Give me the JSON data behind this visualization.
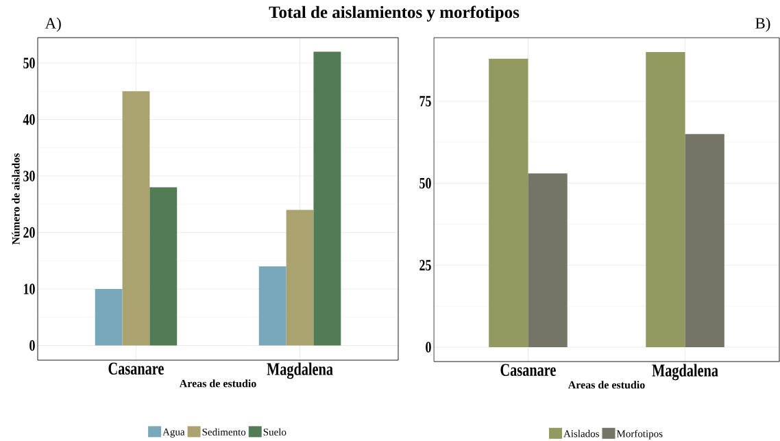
{
  "chart_data": [
    {
      "type": "bar",
      "title": "A)",
      "annotations": [
        "Total de aislamientos y morfotipos"
      ],
      "xlabel": "Areas de estudio",
      "ylabel": "Número de aislados",
      "categories": [
        "Casanare",
        "Magdalena"
      ],
      "series": [
        {
          "name": "Agua",
          "color": "#7aa8bb",
          "values": [
            10,
            14
          ]
        },
        {
          "name": "Sedimento",
          "color": "#aaa370",
          "values": [
            45,
            24
          ]
        },
        {
          "name": "Suelo",
          "color": "#527c56",
          "values": [
            28,
            52
          ]
        }
      ],
      "ylim": [
        -2.6,
        54.5
      ],
      "yticks": [
        0,
        10,
        20,
        30,
        40,
        50
      ],
      "grid": true,
      "legend": "bottom"
    },
    {
      "type": "bar",
      "title": "B)",
      "xlabel": "Areas de estudio",
      "categories": [
        "Casanare",
        "Magdalena"
      ],
      "series": [
        {
          "name": "Aislados",
          "color": "#939a60",
          "values": [
            88,
            90
          ]
        },
        {
          "name": "Morfotipos",
          "color": "#747567",
          "values": [
            53,
            65
          ]
        }
      ],
      "ylim": [
        -4.4,
        94.4
      ],
      "yticks": [
        0,
        25,
        50,
        75
      ],
      "grid": true,
      "legend": "bottom"
    }
  ]
}
